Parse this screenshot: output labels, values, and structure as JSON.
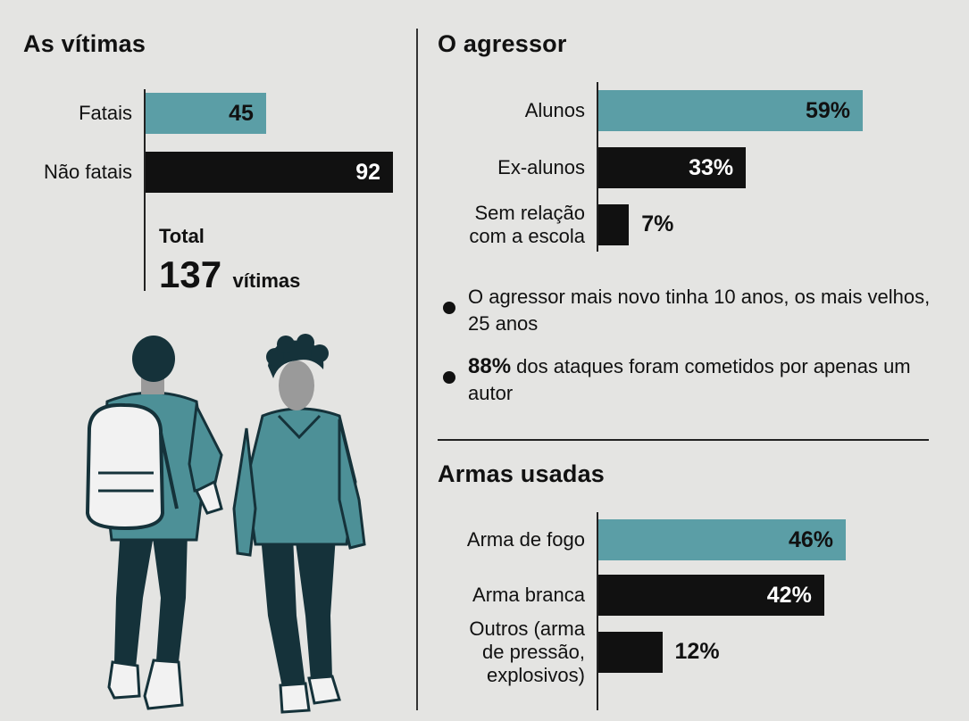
{
  "victims": {
    "title": "As vítimas",
    "chart_data": {
      "type": "bar",
      "orientation": "horizontal",
      "categories": [
        "Fatais",
        "Não fatais"
      ],
      "values": [
        45,
        92
      ],
      "labels": [
        "45",
        "92"
      ],
      "colors": [
        "#5b9ea6",
        "#111111"
      ],
      "xlim": [
        0,
        92
      ]
    },
    "total_label": "Total",
    "total_number": "137",
    "total_unit": "vítimas"
  },
  "aggressor": {
    "title": "O agressor",
    "chart_data": {
      "type": "bar",
      "orientation": "horizontal",
      "categories": [
        "Alunos",
        "Ex-alunos",
        "Sem relação com a escola"
      ],
      "category_lines": [
        [
          "Alunos"
        ],
        [
          "Ex-alunos"
        ],
        [
          "Sem relação",
          "com a escola"
        ]
      ],
      "values": [
        59,
        33,
        7
      ],
      "labels": [
        "59%",
        "33%",
        "7%"
      ],
      "colors": [
        "#5b9ea6",
        "#111111",
        "#111111"
      ],
      "unit": "%"
    },
    "notes": [
      {
        "bold": "",
        "text": "O agressor mais novo tinha 10 anos, os mais velhos, 25 anos"
      },
      {
        "bold": "88%",
        "text": " dos ataques foram cometidos por apenas um autor"
      }
    ]
  },
  "weapons": {
    "title": "Armas usadas",
    "chart_data": {
      "type": "bar",
      "orientation": "horizontal",
      "categories": [
        "Arma de fogo",
        "Arma branca",
        "Outros (arma de pressão, explosivos)"
      ],
      "category_lines": [
        [
          "Arma de fogo"
        ],
        [
          "Arma branca"
        ],
        [
          "Outros (arma",
          "de pressão,",
          "explosivos)"
        ]
      ],
      "values": [
        46,
        42,
        12
      ],
      "labels": [
        "46%",
        "42%",
        "12%"
      ],
      "colors": [
        "#5b9ea6",
        "#111111",
        "#111111"
      ],
      "unit": "%"
    }
  },
  "illustration": {
    "icon": "two-students-illustration"
  }
}
